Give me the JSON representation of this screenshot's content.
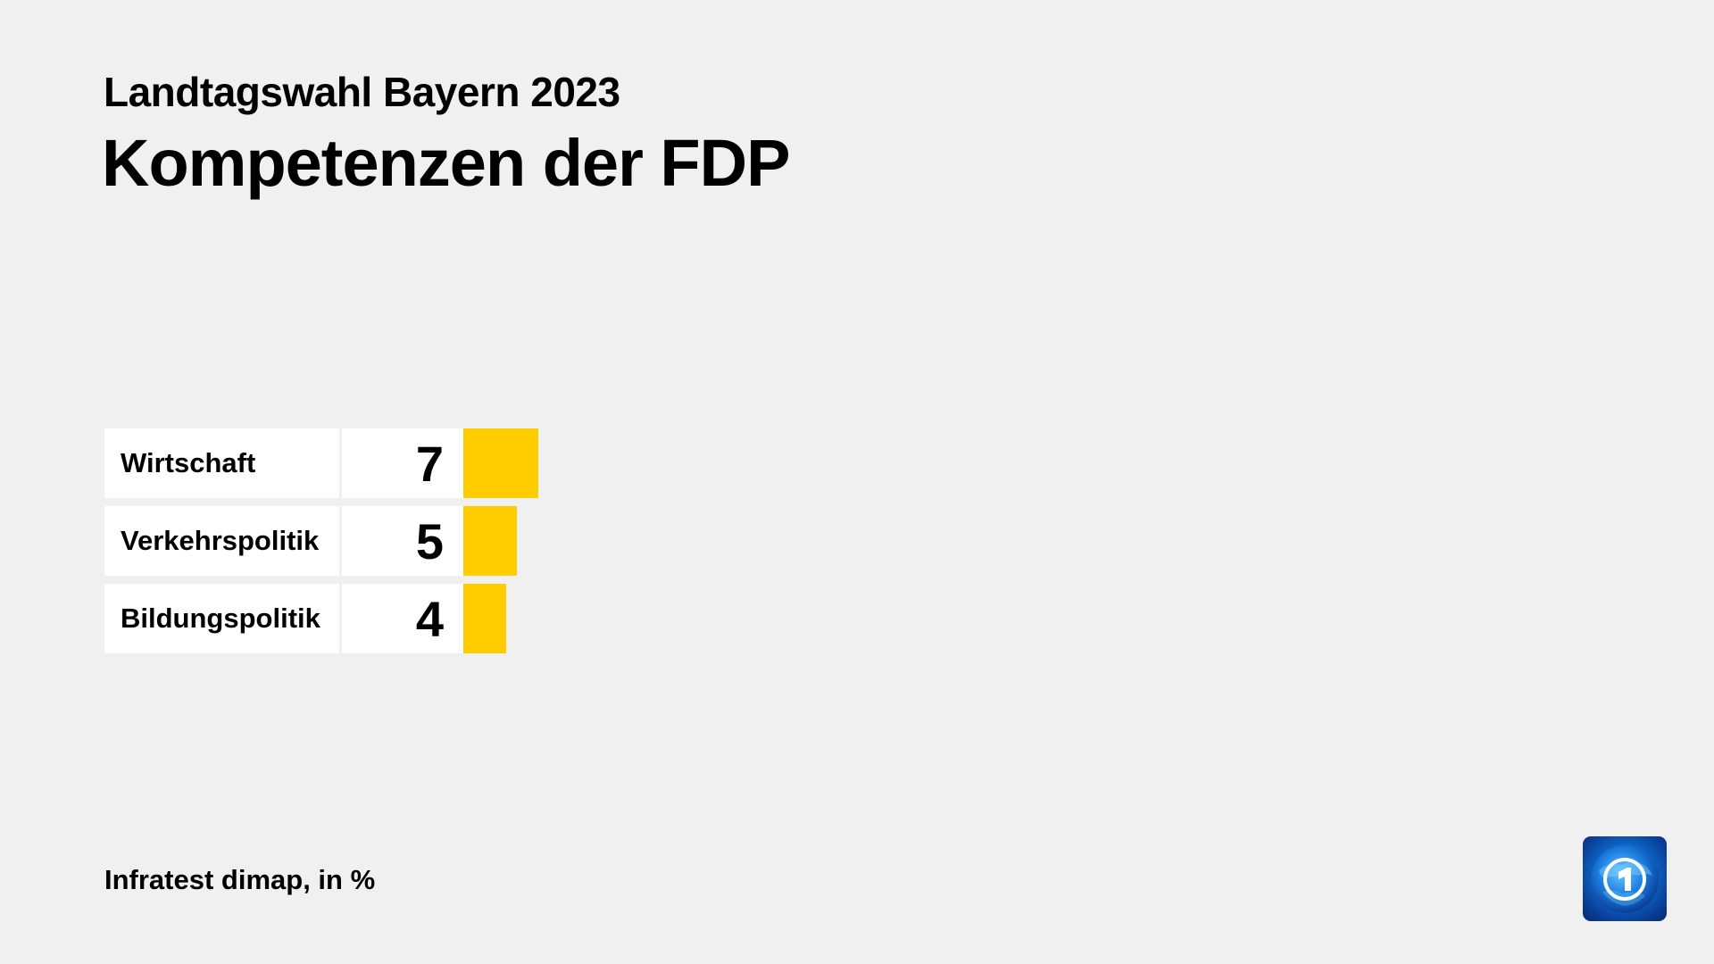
{
  "header": {
    "subtitle": "Landtagswahl Bayern 2023",
    "title": "Kompetenzen der FDP"
  },
  "rows": [
    {
      "label": "Wirtschaft",
      "value": "7"
    },
    {
      "label": "Verkehrspolitik",
      "value": "5"
    },
    {
      "label": "Bildungspolitik",
      "value": "4"
    }
  ],
  "footer": {
    "source": "Infratest dimap, in %"
  },
  "logo": {
    "icon": "tagesschau-globe-1-icon"
  },
  "colors": {
    "background": "#f0f0f0",
    "bar": "#ffcc00",
    "cell": "#ffffff"
  },
  "chart_data": {
    "type": "bar",
    "orientation": "horizontal",
    "title": "Kompetenzen der FDP",
    "subtitle": "Landtagswahl Bayern 2023",
    "categories": [
      "Wirtschaft",
      "Verkehrspolitik",
      "Bildungspolitik"
    ],
    "values": [
      7,
      5,
      4
    ],
    "unit": "%",
    "source": "Infratest dimap, in %",
    "bar_color": "#ffcc00",
    "xlabel": "",
    "ylabel": "",
    "grid": false,
    "legend": false
  }
}
